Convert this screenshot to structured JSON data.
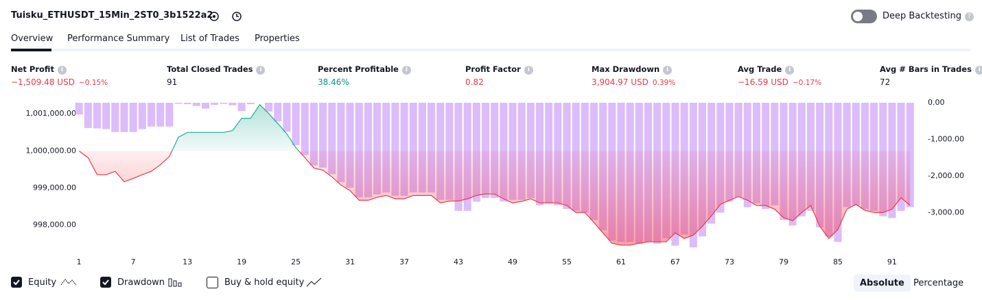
{
  "header": {
    "title": "Tuisku_ETHUSDT_15Min_2ST0_3b1522a2",
    "deep_backtesting": "Deep Backtesting"
  },
  "tabs": [
    "Overview",
    "Performance Summary",
    "List of Trades",
    "Properties"
  ],
  "metrics": [
    {
      "label": "Net Profit",
      "value": "−1,509.48 USD",
      "pct": "−0.15%"
    },
    {
      "label": "Total Closed Trades",
      "value": "91"
    },
    {
      "label": "Percent Profitable",
      "value": "38.46%"
    },
    {
      "label": "Profit Factor",
      "value": "0.82"
    },
    {
      "label": "Max Drawdown",
      "value": "3,904.97 USD",
      "pct": "0.39%"
    },
    {
      "label": "Avg Trade",
      "value": "−16.59 USD",
      "pct": "−0.17%"
    },
    {
      "label": "Avg # Bars in Trades",
      "value": "72"
    }
  ],
  "controls": {
    "buy_hold": "Buy & hold equity",
    "absolute": "Absolute",
    "percentage": "Percentage"
  },
  "chart_data": {
    "type": "line",
    "x": [
      1,
      2,
      3,
      4,
      5,
      6,
      7,
      8,
      9,
      10,
      11,
      12,
      13,
      14,
      15,
      16,
      17,
      18,
      19,
      20,
      21,
      22,
      23,
      24,
      25,
      26,
      27,
      28,
      29,
      30,
      31,
      32,
      33,
      34,
      35,
      36,
      37,
      38,
      39,
      40,
      41,
      42,
      43,
      44,
      45,
      46,
      47,
      48,
      49,
      50,
      51,
      52,
      53,
      54,
      55,
      56,
      57,
      58,
      59,
      60,
      61,
      62,
      63,
      64,
      65,
      66,
      67,
      68,
      69,
      70,
      71,
      72,
      73,
      74,
      75,
      76,
      77,
      78,
      79,
      80,
      81,
      82,
      83,
      84,
      85,
      86,
      87,
      88,
      89,
      90,
      91,
      92,
      93
    ],
    "baseline": 1000000,
    "series": [
      {
        "name": "Equity",
        "type": "line",
        "color": "#f23645",
        "color_above": "#22ab94",
        "values": [
          1000000,
          999820,
          999360,
          999360,
          999450,
          999170,
          999260,
          999360,
          999450,
          999630,
          999850,
          1000370,
          1000500,
          1000500,
          1000500,
          1000500,
          1000500,
          1000550,
          1000880,
          1000880,
          1001250,
          1001010,
          1000740,
          1000460,
          1000090,
          999820,
          999540,
          999480,
          999300,
          999080,
          998930,
          998670,
          998670,
          998750,
          998800,
          998710,
          998710,
          998800,
          998800,
          998800,
          998600,
          998650,
          998650,
          998710,
          998800,
          998840,
          998840,
          998710,
          998600,
          998640,
          998710,
          998600,
          998600,
          998600,
          998530,
          998340,
          998340,
          998070,
          997790,
          997510,
          997460,
          997460,
          997510,
          997550,
          997550,
          997550,
          997790,
          997640,
          997730,
          997970,
          998250,
          998560,
          998670,
          998770,
          998670,
          998530,
          998530,
          998430,
          998200,
          998120,
          998340,
          998530,
          997970,
          997640,
          997880,
          998430,
          998560,
          998400,
          998340,
          998340,
          998430,
          998740,
          998530
        ]
      },
      {
        "name": "Drawdown",
        "type": "bar",
        "axis": "y2",
        "color": "#dcbcfb",
        "values": [
          -320,
          -690,
          -700,
          -720,
          -800,
          -800,
          -800,
          -720,
          -650,
          -650,
          -650,
          -30,
          -40,
          -90,
          -160,
          -60,
          -30,
          -70,
          -230,
          -40,
          0,
          -240,
          -510,
          -790,
          -1160,
          -1430,
          -1710,
          -1770,
          -1950,
          -2170,
          -2320,
          -2580,
          -2580,
          -2500,
          -2450,
          -2540,
          -2540,
          -2450,
          -2450,
          -2450,
          -2650,
          -2650,
          -2950,
          -2950,
          -2700,
          -2600,
          -2600,
          -2700,
          -2650,
          -2650,
          -2600,
          -2800,
          -2750,
          -2800,
          -2900,
          -2950,
          -3000,
          -3200,
          -3480,
          -3760,
          -3800,
          -3800,
          -3850,
          -3800,
          -3850,
          -3700,
          -3900,
          -3600,
          -3950,
          -3650,
          -3300,
          -3000,
          -2700,
          -2580,
          -2850,
          -2750,
          -2900,
          -2800,
          -3200,
          -3350,
          -3100,
          -2950,
          -3400,
          -3650,
          -3800,
          -2850,
          -2800,
          -2900,
          -2950,
          -3100,
          -3150,
          -2950,
          -2850
        ]
      }
    ],
    "xlim": [
      0,
      94.5
    ],
    "xticks": [
      1,
      7,
      13,
      19,
      25,
      31,
      37,
      43,
      49,
      55,
      61,
      67,
      73,
      79,
      85,
      91
    ],
    "ylim": [
      997200,
      1001300
    ],
    "yticks": [
      {
        "value": 998000,
        "label": "998,000.00"
      },
      {
        "value": 999000,
        "label": "999,000.00"
      },
      {
        "value": 1000000,
        "label": "1,000,000.00"
      },
      {
        "value": 1001000,
        "label": "1,001,000.00"
      }
    ],
    "y2lim": [
      -4150,
      0
    ],
    "y2ticks": [
      {
        "value": 0,
        "label": "0.00"
      },
      {
        "value": -1000,
        "label": "-1,000.00"
      },
      {
        "value": -2000,
        "label": "-2,000.00"
      },
      {
        "value": -3000,
        "label": "-3,000.00"
      }
    ]
  }
}
